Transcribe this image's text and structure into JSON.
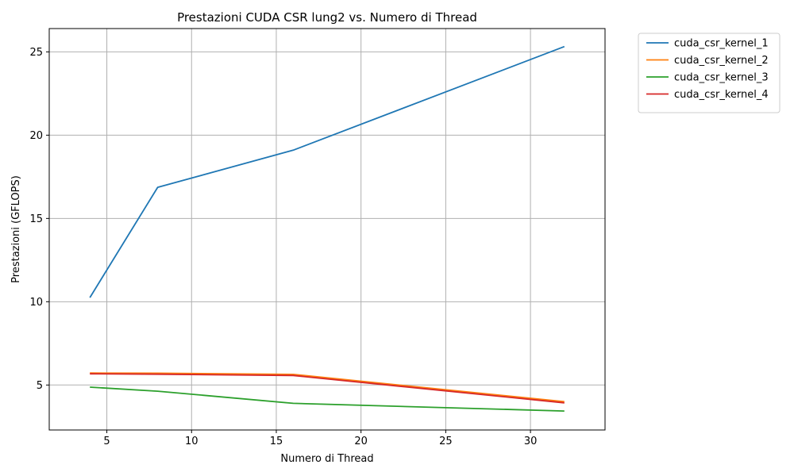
{
  "chart_data": {
    "type": "line",
    "title": "Prestazioni CUDA CSR lung2 vs. Numero di Thread",
    "xlabel": "Numero di Thread",
    "ylabel": "Prestazioni (GFLOPS)",
    "x": [
      4,
      8,
      16,
      32
    ],
    "xlim": [
      1.6,
      34.4
    ],
    "ylim": [
      2.3,
      26.4
    ],
    "xticks": [
      5,
      10,
      15,
      20,
      25,
      30
    ],
    "yticks": [
      5,
      10,
      15,
      20,
      25
    ],
    "grid": true,
    "legend_position": "outside-top-right",
    "series": [
      {
        "name": "cuda_csr_kernel_1",
        "color": "#1f77b4",
        "values": [
          10.25,
          16.87,
          19.1,
          25.32
        ]
      },
      {
        "name": "cuda_csr_kernel_2",
        "color": "#ff7f0e",
        "values": [
          5.72,
          5.71,
          5.64,
          4.0
        ]
      },
      {
        "name": "cuda_csr_kernel_3",
        "color": "#2ca02c",
        "values": [
          4.87,
          4.63,
          3.9,
          3.44
        ]
      },
      {
        "name": "cuda_csr_kernel_4",
        "color": "#d62728",
        "values": [
          5.67,
          5.65,
          5.57,
          3.93
        ]
      }
    ]
  }
}
